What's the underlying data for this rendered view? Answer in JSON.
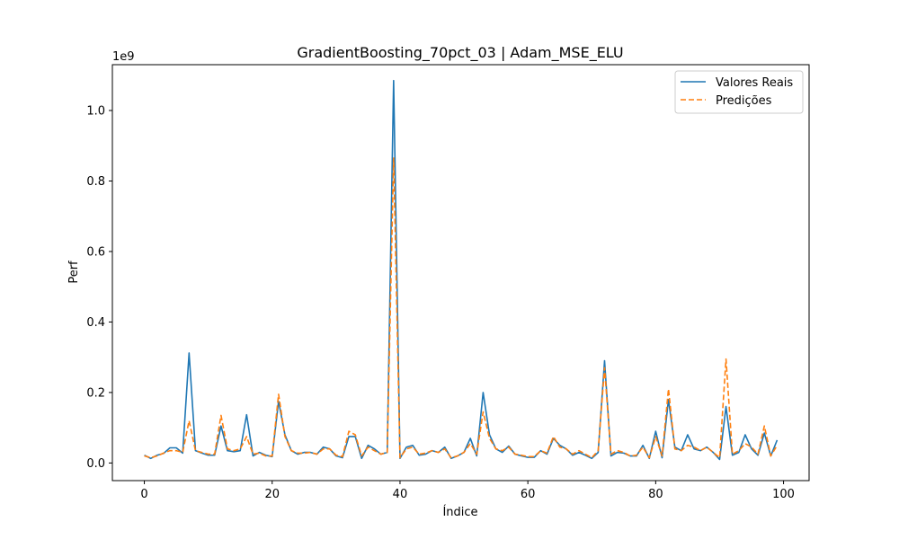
{
  "chart_data": {
    "type": "line",
    "title": "GradientBoosting_70pct_03 | Adam_MSE_ELU",
    "xlabel": "Índice",
    "ylabel": "Perf",
    "y_offset_text": "1e9",
    "xlim": [
      -5,
      104
    ],
    "ylim": [
      -0.05,
      1.13
    ],
    "x_ticks": [
      0,
      20,
      40,
      60,
      80,
      100
    ],
    "y_ticks": [
      0.0,
      0.2,
      0.4,
      0.6,
      0.8,
      1.0
    ],
    "x_tick_labels": [
      "0",
      "20",
      "40",
      "60",
      "80",
      "100"
    ],
    "y_tick_labels": [
      "0.0",
      "0.2",
      "0.4",
      "0.6",
      "0.8",
      "1.0"
    ],
    "grid": false,
    "legend_position": "upper right",
    "x": [
      0,
      1,
      2,
      3,
      4,
      5,
      6,
      7,
      8,
      9,
      10,
      11,
      12,
      13,
      14,
      15,
      16,
      17,
      18,
      19,
      20,
      21,
      22,
      23,
      24,
      25,
      26,
      27,
      28,
      29,
      30,
      31,
      32,
      33,
      34,
      35,
      36,
      37,
      38,
      39,
      40,
      41,
      42,
      43,
      44,
      45,
      46,
      47,
      48,
      49,
      50,
      51,
      52,
      53,
      54,
      55,
      56,
      57,
      58,
      59,
      60,
      61,
      62,
      63,
      64,
      65,
      66,
      67,
      68,
      69,
      70,
      71,
      72,
      73,
      74,
      75,
      76,
      77,
      78,
      79,
      80,
      81,
      82,
      83,
      84,
      85,
      86,
      87,
      88,
      89,
      90,
      91,
      92,
      93,
      94,
      95,
      96,
      97,
      98,
      99
    ],
    "series": [
      {
        "name": "Valores Reais",
        "color": "#1f77b4",
        "dash": "solid",
        "values": [
          0.022,
          0.013,
          0.022,
          0.027,
          0.043,
          0.043,
          0.028,
          0.312,
          0.035,
          0.028,
          0.022,
          0.022,
          0.105,
          0.035,
          0.032,
          0.035,
          0.137,
          0.02,
          0.03,
          0.022,
          0.018,
          0.175,
          0.08,
          0.035,
          0.025,
          0.03,
          0.03,
          0.025,
          0.045,
          0.04,
          0.02,
          0.015,
          0.075,
          0.075,
          0.013,
          0.05,
          0.04,
          0.025,
          0.03,
          1.085,
          0.013,
          0.045,
          0.05,
          0.022,
          0.025,
          0.035,
          0.03,
          0.045,
          0.013,
          0.02,
          0.03,
          0.07,
          0.02,
          0.2,
          0.08,
          0.04,
          0.03,
          0.048,
          0.025,
          0.02,
          0.016,
          0.016,
          0.035,
          0.025,
          0.07,
          0.05,
          0.04,
          0.022,
          0.03,
          0.022,
          0.013,
          0.03,
          0.29,
          0.02,
          0.03,
          0.028,
          0.02,
          0.02,
          0.05,
          0.013,
          0.09,
          0.015,
          0.18,
          0.045,
          0.035,
          0.08,
          0.04,
          0.035,
          0.045,
          0.03,
          0.01,
          0.16,
          0.022,
          0.03,
          0.08,
          0.04,
          0.022,
          0.085,
          0.02,
          0.065
        ]
      },
      {
        "name": "Predições",
        "color": "#ff7f0e",
        "dash": "dashed",
        "values": [
          0.02,
          0.015,
          0.02,
          0.028,
          0.035,
          0.035,
          0.03,
          0.12,
          0.035,
          0.03,
          0.025,
          0.025,
          0.135,
          0.04,
          0.035,
          0.04,
          0.075,
          0.025,
          0.028,
          0.02,
          0.02,
          0.195,
          0.075,
          0.035,
          0.028,
          0.028,
          0.03,
          0.025,
          0.04,
          0.04,
          0.022,
          0.018,
          0.09,
          0.08,
          0.02,
          0.045,
          0.035,
          0.025,
          0.03,
          0.865,
          0.015,
          0.04,
          0.045,
          0.025,
          0.028,
          0.035,
          0.03,
          0.04,
          0.015,
          0.02,
          0.03,
          0.055,
          0.025,
          0.145,
          0.07,
          0.04,
          0.035,
          0.045,
          0.025,
          0.022,
          0.018,
          0.018,
          0.035,
          0.028,
          0.075,
          0.045,
          0.04,
          0.025,
          0.035,
          0.025,
          0.015,
          0.035,
          0.27,
          0.025,
          0.035,
          0.03,
          0.02,
          0.022,
          0.045,
          0.015,
          0.075,
          0.02,
          0.21,
          0.04,
          0.035,
          0.05,
          0.045,
          0.035,
          0.045,
          0.03,
          0.015,
          0.295,
          0.025,
          0.035,
          0.055,
          0.045,
          0.025,
          0.105,
          0.02,
          0.05
        ]
      }
    ]
  }
}
